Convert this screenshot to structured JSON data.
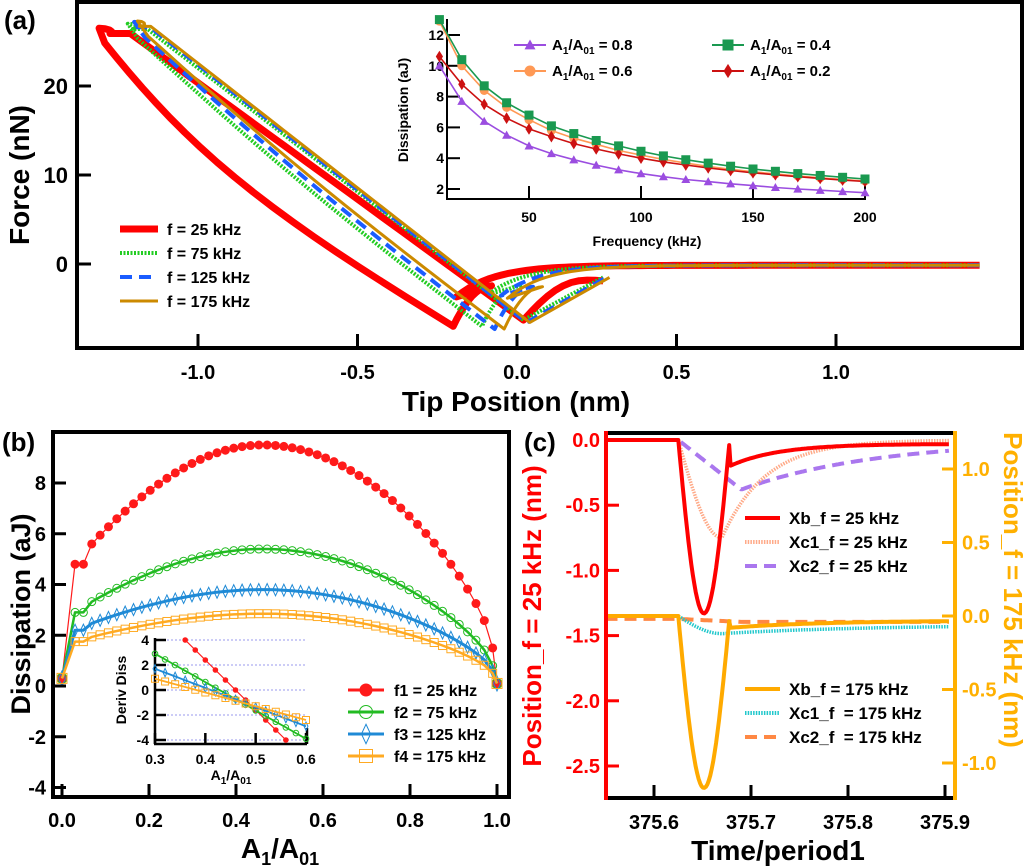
{
  "chart_data": [
    {
      "id": "a",
      "panel_label": "(a)",
      "type": "line",
      "title": "",
      "xlabel": "Tip Position (nm)",
      "ylabel": "Force (nN)",
      "xlim": [
        -1.38,
        1.48
      ],
      "ylim": [
        -9.5,
        29.5
      ],
      "xticks": [
        -1.0,
        -0.5,
        0.0,
        0.5,
        1.0
      ],
      "xtick_labels": [
        "-1.0",
        "-0.5",
        "0.0",
        "0.5",
        "1.0"
      ],
      "yticks": [
        0,
        10,
        20
      ],
      "ytick_labels": [
        "0",
        "10",
        "20"
      ],
      "legend_position": "bottom-left",
      "series": [
        {
          "name": "f = 25 kHz",
          "color": "#ff0000",
          "style": "solid-thick",
          "min_x": -1.33,
          "peak_force": 26.5,
          "contact_x": -0.2,
          "min_force": -7.0,
          "upper_offset": 0.17
        },
        {
          "name": "f = 75 kHz",
          "color": "#22cc22",
          "style": "dotted",
          "min_x": -1.24,
          "peak_force": 27.0,
          "contact_x": -0.11,
          "min_force": -7.0,
          "upper_offset": 0.08
        },
        {
          "name": "f = 125 kHz",
          "color": "#1a5cff",
          "style": "dashed",
          "min_x": -1.22,
          "peak_force": 27.2,
          "contact_x": -0.07,
          "min_force": -7.3,
          "upper_offset": 0.05
        },
        {
          "name": "f = 175 kHz",
          "color": "#cc8a00",
          "style": "solid",
          "min_x": -1.21,
          "peak_force": 27.3,
          "contact_x": -0.04,
          "min_force": -7.3,
          "upper_offset": 0.03
        }
      ],
      "inset": {
        "type": "line",
        "xlabel": "Frequency (kHz)",
        "ylabel": "Dissipation (aJ)",
        "xlim": [
          8,
          201
        ],
        "ylim": [
          1.5,
          13.3
        ],
        "xticks": [
          50,
          100,
          150,
          200
        ],
        "xtick_labels": [
          "50",
          "100",
          "150",
          "200"
        ],
        "yticks": [
          2,
          4,
          6,
          8,
          10,
          12
        ],
        "ytick_labels": [
          "2",
          "4",
          "6",
          "8",
          "10",
          "12"
        ],
        "legend_position": "top-right",
        "x": [
          10,
          20,
          30,
          40,
          50,
          60,
          70,
          80,
          90,
          100,
          110,
          120,
          130,
          140,
          150,
          160,
          170,
          180,
          190,
          200
        ],
        "series": [
          {
            "name": "A1/A01 = 0.8",
            "name_main": "A",
            "sub1": "1",
            "sep": "/A",
            "sub2": "01",
            "suffix": " = 0.8",
            "color": "#9b4de0",
            "marker": "triangle",
            "values": [
              10.0,
              7.7,
              6.4,
              5.5,
              4.8,
              4.3,
              3.9,
              3.55,
              3.25,
              3.0,
              2.8,
              2.62,
              2.48,
              2.34,
              2.22,
              2.1,
              2.0,
              1.92,
              1.84,
              1.76
            ]
          },
          {
            "name": "A1/A01 = 0.4",
            "name_main": "A",
            "sub1": "1",
            "sep": "/A",
            "sub2": "01",
            "suffix": " = 0.4",
            "color": "#1a9950",
            "marker": "square",
            "values": [
              13.0,
              10.4,
              8.7,
              7.6,
              6.8,
              6.1,
              5.6,
              5.15,
              4.8,
              4.45,
              4.15,
              3.9,
              3.68,
              3.48,
              3.3,
              3.15,
              3.0,
              2.88,
              2.76,
              2.65
            ]
          },
          {
            "name": "A1/A01 = 0.6",
            "name_main": "A",
            "sub1": "1",
            "sep": "/A",
            "sub2": "01",
            "suffix": " = 0.6",
            "color": "#ff9955",
            "marker": "circle",
            "values": [
              12.9,
              10.0,
              8.4,
              7.3,
              6.5,
              5.8,
              5.3,
              4.9,
              4.5,
              4.2,
              3.92,
              3.68,
              3.47,
              3.28,
              3.12,
              2.98,
              2.85,
              2.73,
              2.62,
              2.52
            ]
          },
          {
            "name": "A1/A01 = 0.2",
            "name_main": "A",
            "sub1": "1",
            "sep": "/A",
            "sub2": "01",
            "suffix": " = 0.2",
            "color": "#cc1111",
            "marker": "diamond",
            "values": [
              10.6,
              8.8,
              7.5,
              6.6,
              5.9,
              5.4,
              4.95,
              4.6,
              4.28,
              4.0,
              3.76,
              3.56,
              3.37,
              3.2,
              3.05,
              2.92,
              2.8,
              2.69,
              2.58,
              2.49
            ]
          }
        ]
      }
    },
    {
      "id": "b",
      "panel_label": "(b)",
      "type": "line",
      "xlabel_main": "A",
      "xlabel_sub1": "1",
      "xlabel_sep": "/A",
      "xlabel_sub2": "01",
      "xlabel": "A1/A01",
      "ylabel": "Dissipation (aJ)",
      "xlim": [
        -0.02,
        1.02
      ],
      "ylim": [
        -4.3,
        9.8
      ],
      "xticks": [
        0.0,
        0.2,
        0.4,
        0.6,
        0.8,
        1.0
      ],
      "xtick_labels": [
        "0.0",
        "0.2",
        "0.4",
        "0.6",
        "0.8",
        "1.0"
      ],
      "yticks": [
        -4,
        -2,
        0,
        2,
        4,
        6,
        8
      ],
      "ytick_labels": [
        "-4",
        "-2",
        "0",
        "2",
        "4",
        "6",
        "8"
      ],
      "legend_position": "bottom-right",
      "series": [
        {
          "name": "f1 = 25 kHz",
          "color": "#ff1a1a",
          "marker": "filled-circle",
          "peak": 9.5,
          "start": 4.8,
          "end_edge": 1.5
        },
        {
          "name": "f2 = 75 kHz",
          "color": "#22bb22",
          "marker": "open-circle",
          "peak": 5.4,
          "start": 2.9,
          "end_edge": 0.8
        },
        {
          "name": "f3 = 125 kHz",
          "color": "#1f8ad6",
          "marker": "open-diamond",
          "peak": 3.8,
          "start": 2.2,
          "end_edge": 0.6
        },
        {
          "name": "f4 = 175 kHz",
          "color": "#ffaa22",
          "marker": "open-square",
          "peak": 2.85,
          "start": 1.75,
          "end_edge": 0.5
        }
      ],
      "inset": {
        "type": "line",
        "xlabel": "A1/A01",
        "ylabel": "Deriv Diss",
        "xlim": [
          0.3,
          0.6
        ],
        "ylim": [
          -4.4,
          4.4
        ],
        "xticks": [
          0.3,
          0.4,
          0.5,
          0.6
        ],
        "xtick_labels": [
          "0.3",
          "0.4",
          "0.5",
          "0.6"
        ],
        "yticks": [
          -4,
          -2,
          0,
          2,
          4
        ],
        "ytick_labels": [
          "-4",
          "-2",
          "0",
          "2",
          "4"
        ],
        "grid": true,
        "series": [
          {
            "name": "f1 = 25 kHz",
            "x_start": 0.36,
            "y_start": 4.0,
            "x_end": 0.56,
            "y_end": -4.0
          },
          {
            "name": "f2 = 75 kHz",
            "x_start": 0.3,
            "y_start": 2.9,
            "x_end": 0.6,
            "y_end": -3.9
          },
          {
            "name": "f3 = 125 kHz",
            "x_start": 0.3,
            "y_start": 1.7,
            "x_end": 0.6,
            "y_end": -2.9
          },
          {
            "name": "f4 = 175 kHz",
            "x_start": 0.3,
            "y_start": 0.9,
            "x_end": 0.6,
            "y_end": -2.4
          }
        ]
      }
    },
    {
      "id": "c",
      "panel_label": "(c)",
      "type": "line",
      "xlabel": "Time/period1",
      "ylabel_left": "Position_f = 25 kHz (nm)",
      "ylabel_right": "Position_f = 175 kHz (nm)",
      "left_color": "#ff0000",
      "right_color": "#ffb000",
      "xlim": [
        375.55,
        375.91
      ],
      "ylim_left": [
        -2.8,
        0.05
      ],
      "ylim_right": [
        -1.22,
        1.3
      ],
      "xticks": [
        375.6,
        375.7,
        375.8,
        375.9
      ],
      "xtick_labels": [
        "375.6",
        "375.7",
        "375.8",
        "375.9"
      ],
      "yticks_left": [
        0.0,
        -0.5,
        -1.0,
        -1.5,
        -2.0,
        -2.5
      ],
      "ytick_labels_left": [
        "0.0",
        "-0.5",
        "-1.0",
        "-1.5",
        "-2.0",
        "-2.5"
      ],
      "yticks_right": [
        1.0,
        0.5,
        0.0,
        -0.5,
        -1.0
      ],
      "ytick_labels_right": [
        "1.0",
        "0.5",
        "0.0",
        "-0.5",
        "-1.0"
      ],
      "series": [
        {
          "name": "Xb_f = 25 kHz",
          "axis": "left",
          "color": "#ff0000",
          "style": "solid-thick",
          "min_t": 375.65,
          "min_val": -1.33
        },
        {
          "name": "Xc1_f = 25 kHz",
          "axis": "left",
          "color": "#ffaa88",
          "style": "dotted",
          "min_t": 375.67,
          "min_val": -0.75
        },
        {
          "name": "Xc2_f = 25 kHz",
          "axis": "left",
          "color": "#aa77ee",
          "style": "dashed",
          "min_t": 375.69,
          "min_val": -0.38
        },
        {
          "name": "Xb_f = 175 kHz",
          "axis": "right",
          "color": "#ffaa00",
          "style": "solid-thick",
          "min_t": 375.65,
          "min_val": -1.17
        },
        {
          "name": "Xc1_f  = 175 kHz",
          "axis": "right",
          "color": "#22c8cc",
          "style": "dotted",
          "min_t": 375.67,
          "min_val": -0.12
        },
        {
          "name": "Xc2_f  = 175 kHz",
          "axis": "right",
          "color": "#ff8844",
          "style": "dashed",
          "min_t": 375.69,
          "min_val": -0.04
        }
      ]
    }
  ]
}
